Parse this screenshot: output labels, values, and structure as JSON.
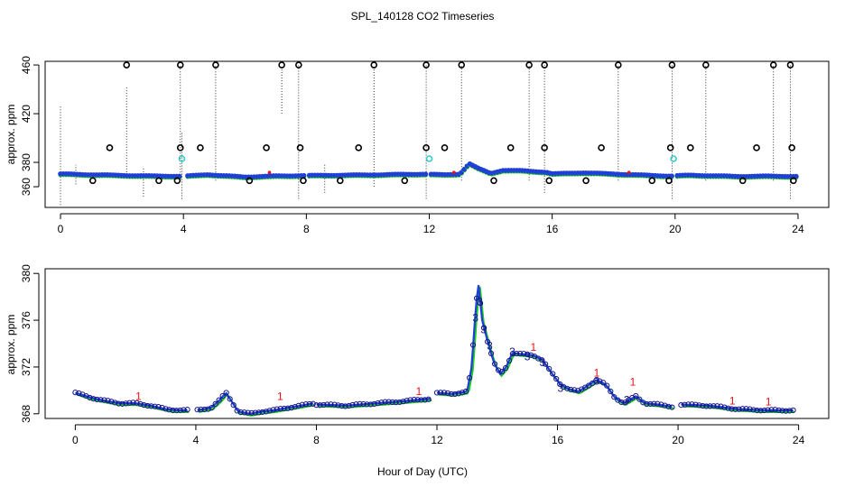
{
  "page_title": "SPL_140128  CO2 Timeseries",
  "colors": {
    "blue": "#1f3fd6",
    "navy": "#14148c",
    "green": "#1ecc1e",
    "red": "#ee1111",
    "cyan": "#33cccc",
    "black": "#000000"
  },
  "chart_data": [
    {
      "type": "scatter",
      "name": "top-panel",
      "title": "SPL_140128  CO2 Timeseries",
      "xlabel": "",
      "ylabel": "approx. ppm",
      "xlim": [
        -0.5,
        25
      ],
      "ylim": [
        343,
        463
      ],
      "xticks": [
        0,
        4,
        8,
        12,
        16,
        20,
        24
      ],
      "yticks": [
        360,
        380,
        420,
        460
      ],
      "grid": false,
      "legend": "none",
      "baseline_knots": [
        [
          0,
          370.5
        ],
        [
          1.5,
          369.6
        ],
        [
          3,
          368.8
        ],
        [
          4,
          368.6
        ],
        [
          4.8,
          370
        ],
        [
          5.2,
          369.2
        ],
        [
          6,
          368
        ],
        [
          7,
          368.8
        ],
        [
          8,
          369.2
        ],
        [
          10,
          369.7
        ],
        [
          11.8,
          370.4
        ],
        [
          12.5,
          369.8
        ],
        [
          13,
          370.5
        ],
        [
          13.3,
          379
        ],
        [
          13.6,
          375
        ],
        [
          14,
          371
        ],
        [
          14.4,
          373.5
        ],
        [
          15,
          373.2
        ],
        [
          15.8,
          372
        ],
        [
          16,
          370.6
        ],
        [
          17,
          371.5
        ],
        [
          18,
          370.5
        ],
        [
          19,
          369.5
        ],
        [
          19.8,
          368.8
        ],
        [
          20.5,
          369.5
        ],
        [
          22,
          368.5
        ],
        [
          23,
          368.7
        ],
        [
          24,
          368.5
        ]
      ],
      "gaps": [
        [
          3.95,
          4.05
        ],
        [
          7.95,
          8.05
        ],
        [
          11.95,
          12.05
        ],
        [
          19.95,
          20.05
        ]
      ],
      "outliers_high": [
        {
          "x": 2.15,
          "y": 460
        },
        {
          "x": 3.9,
          "y": 460
        },
        {
          "x": 5.05,
          "y": 460
        },
        {
          "x": 7.2,
          "y": 460
        },
        {
          "x": 7.75,
          "y": 460
        },
        {
          "x": 10.2,
          "y": 460
        },
        {
          "x": 11.9,
          "y": 460
        },
        {
          "x": 13.05,
          "y": 460
        },
        {
          "x": 15.25,
          "y": 460
        },
        {
          "x": 15.75,
          "y": 460
        },
        {
          "x": 18.15,
          "y": 460
        },
        {
          "x": 19.9,
          "y": 460
        },
        {
          "x": 21.0,
          "y": 460
        },
        {
          "x": 23.2,
          "y": 460
        },
        {
          "x": 23.75,
          "y": 460
        }
      ],
      "outliers_mid": [
        {
          "x": 1.6,
          "y": 392
        },
        {
          "x": 3.9,
          "y": 392
        },
        {
          "x": 4.55,
          "y": 392
        },
        {
          "x": 6.7,
          "y": 392
        },
        {
          "x": 7.8,
          "y": 392
        },
        {
          "x": 9.7,
          "y": 392
        },
        {
          "x": 11.9,
          "y": 392
        },
        {
          "x": 12.5,
          "y": 392
        },
        {
          "x": 14.65,
          "y": 392
        },
        {
          "x": 15.75,
          "y": 392
        },
        {
          "x": 17.6,
          "y": 392
        },
        {
          "x": 19.85,
          "y": 392
        },
        {
          "x": 20.5,
          "y": 392
        },
        {
          "x": 22.65,
          "y": 392
        },
        {
          "x": 23.8,
          "y": 392
        }
      ],
      "outliers_low": [
        {
          "x": 1.05,
          "y": 365
        },
        {
          "x": 3.2,
          "y": 365
        },
        {
          "x": 3.8,
          "y": 365
        },
        {
          "x": 6.15,
          "y": 365
        },
        {
          "x": 7.9,
          "y": 365
        },
        {
          "x": 9.1,
          "y": 365
        },
        {
          "x": 11.2,
          "y": 365
        },
        {
          "x": 14.1,
          "y": 365
        },
        {
          "x": 15.9,
          "y": 365
        },
        {
          "x": 17.1,
          "y": 365
        },
        {
          "x": 19.25,
          "y": 365
        },
        {
          "x": 19.8,
          "y": 365
        },
        {
          "x": 22.2,
          "y": 365
        },
        {
          "x": 23.85,
          "y": 365
        }
      ],
      "cyan_points": [
        {
          "x": 3.95,
          "y": 383
        },
        {
          "x": 12.0,
          "y": 383
        },
        {
          "x": 19.95,
          "y": 383
        }
      ],
      "dotted_lines": [
        {
          "x": 0.0,
          "y_from": 345,
          "y_to": 426
        },
        {
          "x": 0.5,
          "y_from": 362,
          "y_to": 378
        },
        {
          "x": 2.15,
          "y_from": 372,
          "y_to": 443
        },
        {
          "x": 2.7,
          "y_from": 352,
          "y_to": 375
        },
        {
          "x": 3.9,
          "y_from": 365,
          "y_to": 460
        },
        {
          "x": 3.95,
          "y_from": 350,
          "y_to": 405
        },
        {
          "x": 5.05,
          "y_from": 365,
          "y_to": 460
        },
        {
          "x": 7.2,
          "y_from": 420,
          "y_to": 460
        },
        {
          "x": 7.75,
          "y_from": 350,
          "y_to": 460
        },
        {
          "x": 8.6,
          "y_from": 355,
          "y_to": 378
        },
        {
          "x": 10.2,
          "y_from": 360,
          "y_to": 460
        },
        {
          "x": 11.9,
          "y_from": 350,
          "y_to": 460
        },
        {
          "x": 13.05,
          "y_from": 365,
          "y_to": 460
        },
        {
          "x": 15.25,
          "y_from": 365,
          "y_to": 460
        },
        {
          "x": 15.75,
          "y_from": 355,
          "y_to": 460
        },
        {
          "x": 18.15,
          "y_from": 365,
          "y_to": 460
        },
        {
          "x": 19.9,
          "y_from": 350,
          "y_to": 460
        },
        {
          "x": 21.0,
          "y_from": 365,
          "y_to": 460
        },
        {
          "x": 23.2,
          "y_from": 365,
          "y_to": 460
        },
        {
          "x": 23.75,
          "y_from": 350,
          "y_to": 460
        }
      ],
      "red_marks": [
        {
          "x": 6.8,
          "y": 371
        },
        {
          "x": 18.5,
          "y": 371
        },
        {
          "x": 12.8,
          "y": 371
        }
      ]
    },
    {
      "type": "scatter",
      "name": "bottom-panel",
      "title": "",
      "xlabel": "Hour of Day (UTC)",
      "ylabel": "approx. ppm",
      "xlim": [
        -1,
        25
      ],
      "ylim": [
        367.6,
        380.4
      ],
      "xticks": [
        0,
        4,
        8,
        12,
        16,
        20,
        24
      ],
      "yticks": [
        368,
        372,
        376,
        380
      ],
      "grid": false,
      "legend": "none",
      "segments": [
        {
          "x_from": 0.0,
          "x_to": 3.75,
          "knots": [
            [
              0,
              369.8
            ],
            [
              0.5,
              369.4
            ],
            [
              1,
              369.1
            ],
            [
              1.5,
              368.9
            ],
            [
              2,
              368.9
            ],
            [
              2.5,
              368.7
            ],
            [
              3,
              368.4
            ],
            [
              3.5,
              368.3
            ],
            [
              3.75,
              368.3
            ]
          ]
        },
        {
          "x_from": 4.05,
          "x_to": 7.9,
          "knots": [
            [
              4.05,
              368.3
            ],
            [
              4.5,
              368.5
            ],
            [
              4.8,
              369.2
            ],
            [
              5.0,
              369.8
            ],
            [
              5.15,
              369.2
            ],
            [
              5.4,
              368.2
            ],
            [
              5.8,
              368.0
            ],
            [
              6.2,
              368.2
            ],
            [
              6.6,
              368.3
            ],
            [
              7.0,
              368.5
            ],
            [
              7.5,
              368.7
            ],
            [
              7.9,
              368.9
            ]
          ]
        },
        {
          "x_from": 8.0,
          "x_to": 11.8,
          "knots": [
            [
              8.0,
              368.8
            ],
            [
              9,
              368.7
            ],
            [
              10,
              368.9
            ],
            [
              11,
              369.1
            ],
            [
              11.8,
              369.3
            ]
          ]
        },
        {
          "x_from": 12.0,
          "x_to": 19.85,
          "knots": [
            [
              12.0,
              369.8
            ],
            [
              12.5,
              369.7
            ],
            [
              13.0,
              369.9
            ],
            [
              13.15,
              372
            ],
            [
              13.3,
              377.5
            ],
            [
              13.38,
              379
            ],
            [
              13.5,
              376
            ],
            [
              13.7,
              374
            ],
            [
              13.9,
              372.3
            ],
            [
              14.1,
              371.4
            ],
            [
              14.3,
              372
            ],
            [
              14.5,
              373.2
            ],
            [
              14.8,
              373.1
            ],
            [
              15.2,
              373
            ],
            [
              15.5,
              372.6
            ],
            [
              15.8,
              371.5
            ],
            [
              16.1,
              370.5
            ],
            [
              16.4,
              370.1
            ],
            [
              16.7,
              369.9
            ],
            [
              17.0,
              370.4
            ],
            [
              17.3,
              370.9
            ],
            [
              17.6,
              370.5
            ],
            [
              17.9,
              369.4
            ],
            [
              18.2,
              368.9
            ],
            [
              18.6,
              369.5
            ],
            [
              18.9,
              368.9
            ],
            [
              19.3,
              368.8
            ],
            [
              19.85,
              368.6
            ]
          ]
        },
        {
          "x_from": 20.1,
          "x_to": 23.85,
          "knots": [
            [
              20.1,
              368.8
            ],
            [
              21,
              368.7
            ],
            [
              22,
              368.4
            ],
            [
              23,
              368.3
            ],
            [
              23.85,
              368.3
            ]
          ]
        }
      ],
      "red_marks": [
        {
          "x": 6.8,
          "y": 369.2
        },
        {
          "x": 18.5,
          "y": 370.4
        },
        {
          "x": 2.1,
          "y": 369.2
        },
        {
          "x": 15.2,
          "y": 373.4
        },
        {
          "x": 17.3,
          "y": 371.2
        },
        {
          "x": 11.4,
          "y": 369.6
        },
        {
          "x": 21.8,
          "y": 368.8
        },
        {
          "x": 23.0,
          "y": 368.7
        }
      ]
    }
  ]
}
